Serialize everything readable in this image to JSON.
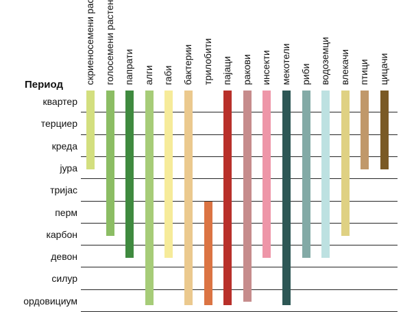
{
  "header": "Период",
  "periods": [
    "квартер",
    "терциер",
    "креда",
    "јура",
    "тријас",
    "перм",
    "карбон",
    "девон",
    "силур",
    "ордовициум"
  ],
  "groups": [
    {
      "name": "скриеносемени растенија",
      "color": "#d3df7f",
      "from": 0,
      "to": 3,
      "extends_down": false
    },
    {
      "name": "голосемени растенија",
      "color": "#8cbd64",
      "from": 0,
      "to": 6,
      "extends_down": false
    },
    {
      "name": "папрати",
      "color": "#3f8a3f",
      "from": 0,
      "to": 7,
      "extends_down": false
    },
    {
      "name": "алги",
      "color": "#a6cc78",
      "from": 0,
      "to": 9,
      "extends_down": true
    },
    {
      "name": "габи",
      "color": "#f6eb9a",
      "from": 0,
      "to": 7,
      "extends_down": false
    },
    {
      "name": "бактерии",
      "color": "#ebc98e",
      "from": 0,
      "to": 9,
      "extends_down": true
    },
    {
      "name": "трилобити",
      "color": "#db7443",
      "from": 5,
      "to": 9,
      "extends_down": true
    },
    {
      "name": "пајаци",
      "color": "#b8302a",
      "from": 0,
      "to": 9,
      "extends_down": true
    },
    {
      "name": "ракови",
      "color": "#c68c8c",
      "from": 0,
      "to": 9,
      "extends_down": false
    },
    {
      "name": "инсекти",
      "color": "#ee96a8",
      "from": 0,
      "to": 7,
      "extends_down": false
    },
    {
      "name": "мекотели",
      "color": "#2d5755",
      "from": 0,
      "to": 9,
      "extends_down": true
    },
    {
      "name": "риби",
      "color": "#83aaa6",
      "from": 0,
      "to": 7,
      "extends_down": false
    },
    {
      "name": "водоземци",
      "color": "#bde1e1",
      "from": 0,
      "to": 7,
      "extends_down": false
    },
    {
      "name": "влекачи",
      "color": "#dfd183",
      "from": 0,
      "to": 6,
      "extends_down": false
    },
    {
      "name": "птици",
      "color": "#c0986a",
      "from": 0,
      "to": 3,
      "extends_down": false
    },
    {
      "name": "цицачи",
      "color": "#7a5a25",
      "from": 0,
      "to": 3,
      "extends_down": false
    }
  ]
}
